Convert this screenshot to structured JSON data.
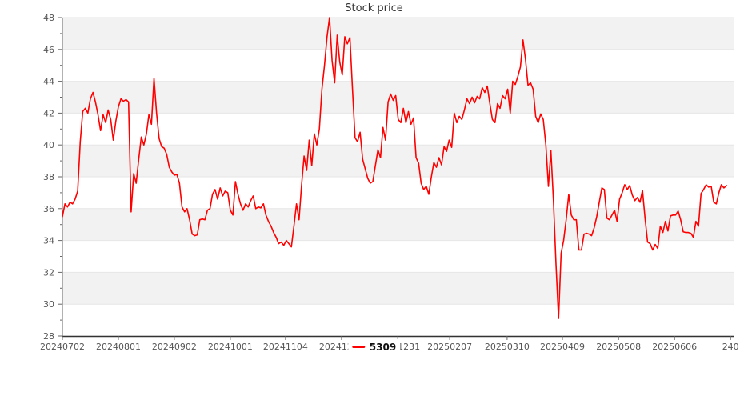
{
  "title": "Stock price",
  "legend": {
    "series_label": "5309",
    "marker_color": "#ff0000"
  },
  "chart_data": {
    "type": "line",
    "title": "Stock price",
    "xlabel": "",
    "ylabel": "",
    "ylim": [
      28,
      48
    ],
    "y_tick_step": 2,
    "y_tick_labels": [
      "28",
      "30",
      "32",
      "34",
      "36",
      "38",
      "40",
      "42",
      "44",
      "46",
      "48"
    ],
    "x_domain": [
      0,
      263.8
    ],
    "x_tick_days": [
      0,
      22,
      44,
      66,
      87.7,
      109.7,
      131.8,
      152.2,
      174.8,
      196.5,
      218.6,
      240.6,
      262.6
    ],
    "x_tick_labels": [
      "20240702",
      "20240801",
      "20240902",
      "20241001",
      "20241104",
      "20241202",
      "20241231",
      "20250207",
      "20250310",
      "20250409",
      "20250508",
      "20250606",
      "240"
    ],
    "grid": true,
    "band_color": "#f2f2f2",
    "grid_color": "#e6e6e6",
    "y_axis_color": "#666666",
    "x_axis_color": "#333333",
    "tick_color": "#666666",
    "tick_label_color": "#555555",
    "legend_position": "bottom-center",
    "series": [
      {
        "name": "5309",
        "color": "#ff0000",
        "values": [
          35.5,
          36.3,
          36.1,
          36.4,
          36.3,
          36.6,
          37.1,
          40.2,
          42.1,
          42.3,
          42.0,
          42.9,
          43.3,
          42.7,
          41.9,
          40.9,
          41.9,
          41.4,
          42.2,
          41.6,
          40.3,
          41.5,
          42.4,
          42.9,
          42.75,
          42.85,
          42.7,
          35.8,
          38.2,
          37.6,
          39.1,
          40.5,
          40.0,
          40.7,
          41.9,
          41.3,
          44.2,
          42.0,
          40.4,
          39.9,
          39.8,
          39.4,
          38.6,
          38.3,
          38.1,
          38.15,
          37.6,
          36.1,
          35.8,
          36.0,
          35.3,
          34.4,
          34.3,
          34.35,
          35.3,
          35.35,
          35.3,
          35.9,
          36.0,
          36.9,
          37.2,
          36.6,
          37.3,
          36.8,
          37.1,
          37.0,
          35.9,
          35.6,
          37.7,
          36.9,
          36.3,
          35.9,
          36.3,
          36.1,
          36.5,
          36.8,
          36.0,
          36.1,
          36.05,
          36.3,
          35.6,
          35.2,
          34.9,
          34.5,
          34.2,
          33.8,
          33.9,
          33.7,
          34.0,
          33.8,
          33.6,
          34.9,
          36.3,
          35.3,
          37.5,
          39.3,
          38.4,
          40.3,
          38.7,
          40.7,
          40.0,
          41.0,
          43.5,
          45.0,
          46.8,
          48.0,
          45.3,
          43.9,
          46.9,
          45.2,
          44.4,
          46.8,
          46.35,
          46.75,
          43.5,
          40.45,
          40.2,
          40.8,
          39.1,
          38.5,
          37.9,
          37.6,
          37.7,
          38.7,
          39.7,
          39.2,
          41.1,
          40.3,
          42.7,
          43.2,
          42.8,
          43.1,
          41.6,
          41.4,
          42.3,
          41.4,
          42.1,
          41.3,
          41.7,
          39.2,
          38.85,
          37.6,
          37.2,
          37.4,
          36.9,
          38.0,
          38.9,
          38.6,
          39.2,
          38.75,
          39.9,
          39.6,
          40.3,
          39.85,
          42.0,
          41.4,
          41.8,
          41.6,
          42.2,
          42.9,
          42.6,
          43.0,
          42.65,
          43.05,
          42.9,
          43.6,
          43.3,
          43.7,
          42.6,
          41.6,
          41.4,
          42.6,
          42.3,
          43.1,
          42.9,
          43.5,
          42.0,
          44.0,
          43.8,
          44.3,
          44.9,
          46.6,
          45.4,
          43.75,
          43.9,
          43.5,
          41.8,
          41.4,
          41.95,
          41.6,
          40.0,
          37.4,
          39.65,
          36.5,
          32.5,
          29.1,
          33.2,
          34.0,
          35.3,
          36.9,
          35.6,
          35.3,
          35.3,
          33.4,
          33.4,
          34.4,
          34.45,
          34.4,
          34.3,
          34.8,
          35.5,
          36.4,
          37.3,
          37.2,
          35.4,
          35.3,
          35.6,
          35.9,
          35.2,
          36.6,
          37.0,
          37.5,
          37.2,
          37.45,
          36.85,
          36.5,
          36.7,
          36.4,
          37.15,
          35.4,
          33.9,
          33.8,
          33.4,
          33.75,
          33.5,
          34.9,
          34.5,
          35.2,
          34.6,
          35.55,
          35.6,
          35.6,
          35.85,
          35.3,
          34.55,
          34.5,
          34.5,
          34.45,
          34.2,
          35.2,
          34.9,
          36.95,
          37.2,
          37.5,
          37.35,
          37.4,
          36.4,
          36.3,
          37.0,
          37.5,
          37.3,
          37.45
        ]
      }
    ]
  }
}
